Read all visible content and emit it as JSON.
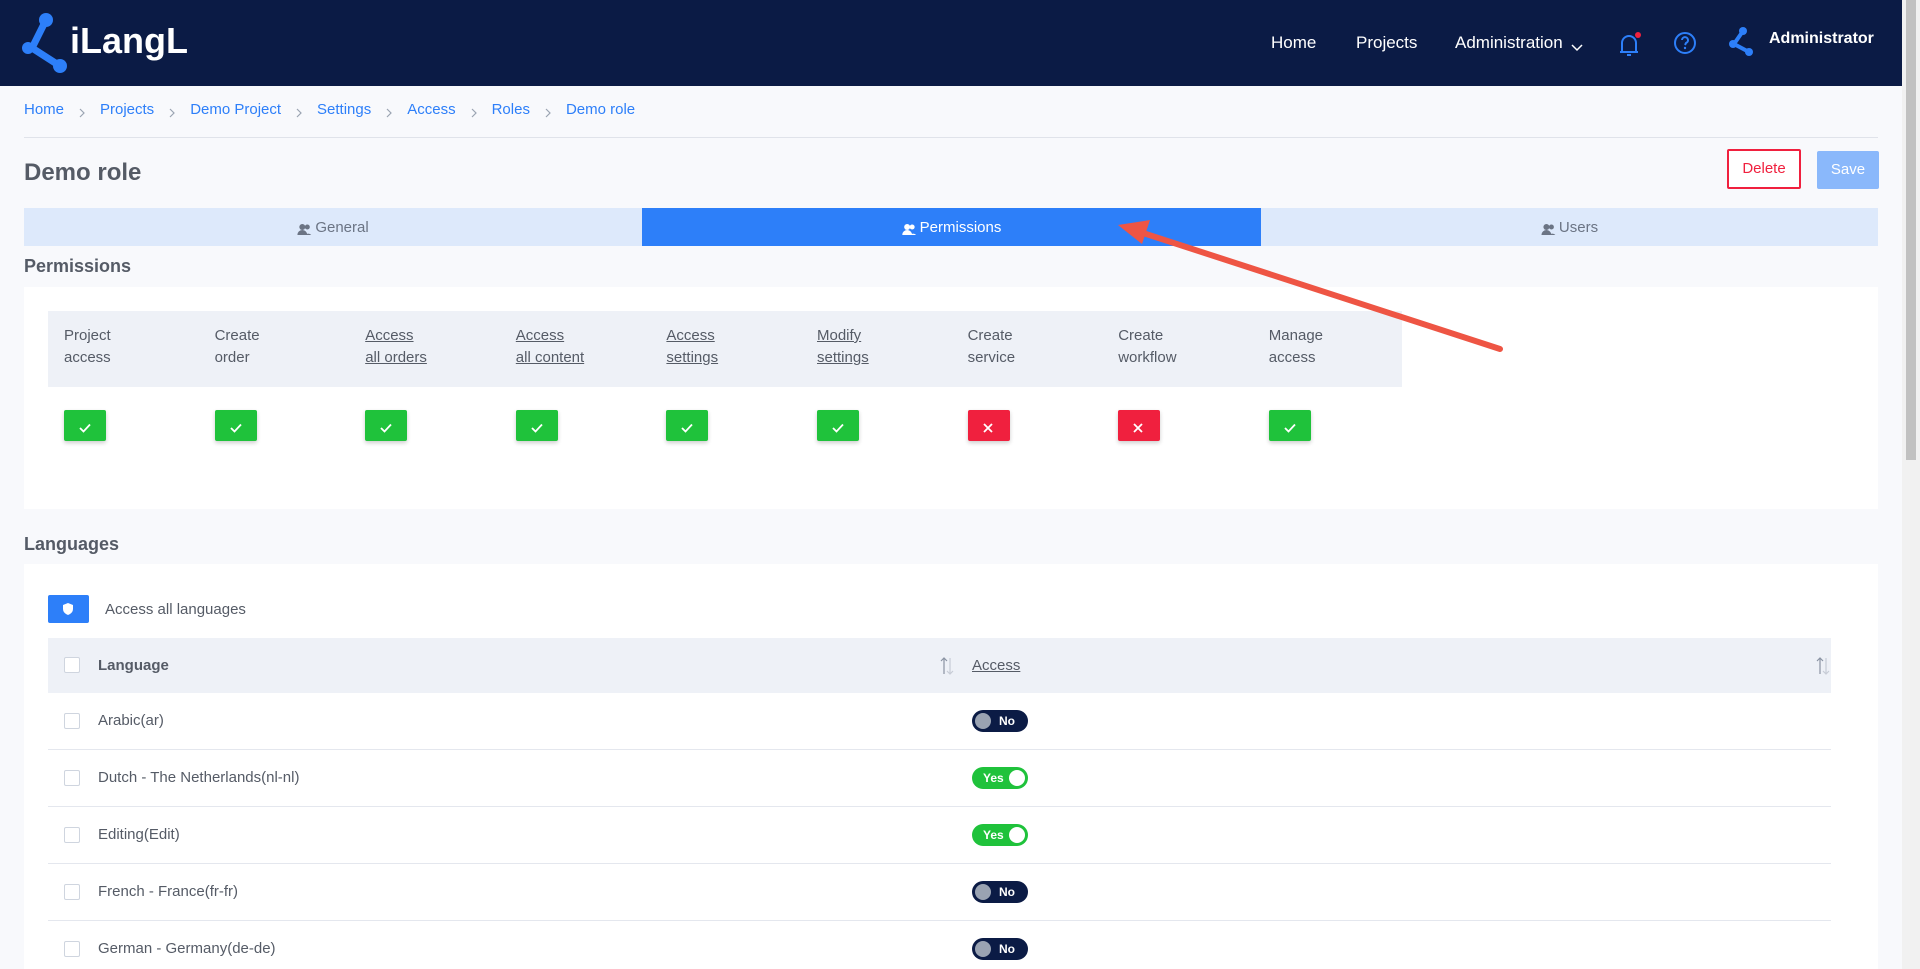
{
  "header": {
    "logo": "iLangL",
    "nav": [
      "Home",
      "Projects",
      "Administration"
    ],
    "user": "Administrator"
  },
  "breadcrumb": [
    "Home",
    "Projects",
    "Demo Project",
    "Settings",
    "Access",
    "Roles",
    "Demo role"
  ],
  "page": {
    "title": "Demo role",
    "actions": [
      "Delete",
      "Save"
    ]
  },
  "tabs": [
    {
      "label": "General",
      "active": false
    },
    {
      "label": "Permissions",
      "active": true
    },
    {
      "label": "Users",
      "active": false
    }
  ],
  "permissions": {
    "title": "Permissions",
    "columns": [
      {
        "label": [
          "Project",
          "access"
        ],
        "underlined": false,
        "granted": true
      },
      {
        "label": [
          "Create",
          "order"
        ],
        "underlined": false,
        "granted": true
      },
      {
        "label": [
          "Access",
          "all orders"
        ],
        "underlined": true,
        "granted": true
      },
      {
        "label": [
          "Access",
          "all content"
        ],
        "underlined": true,
        "granted": true
      },
      {
        "label": [
          "Access",
          "settings"
        ],
        "underlined": true,
        "granted": true
      },
      {
        "label": [
          "Modify",
          "settings"
        ],
        "underlined": true,
        "granted": true
      },
      {
        "label": [
          "Create",
          "service"
        ],
        "underlined": false,
        "granted": false
      },
      {
        "label": [
          "Create",
          "workflow"
        ],
        "underlined": false,
        "granted": false
      },
      {
        "label": [
          "Manage",
          "access"
        ],
        "underlined": false,
        "granted": true
      }
    ]
  },
  "languages": {
    "title": "Languages",
    "access_all": "Access all languages",
    "columns": [
      "Language",
      "Access"
    ],
    "rows": [
      {
        "language": "Arabic(ar)",
        "access": "No",
        "enabled": false
      },
      {
        "language": "Dutch - The Netherlands(nl-nl)",
        "access": "Yes",
        "enabled": true
      },
      {
        "language": "Editing(Edit)",
        "access": "Yes",
        "enabled": true
      },
      {
        "language": "French - France(fr-fr)",
        "access": "No",
        "enabled": false
      },
      {
        "language": "German - Germany(de-de)",
        "access": "No",
        "enabled": false
      }
    ]
  }
}
